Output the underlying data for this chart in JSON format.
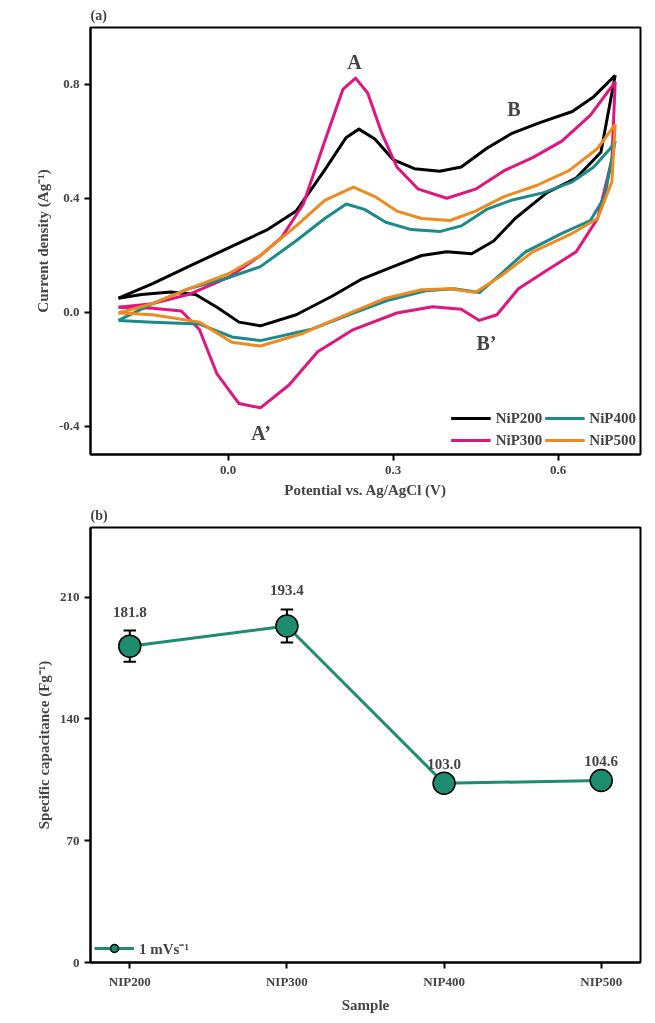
{
  "chart_data": [
    {
      "type": "line",
      "title": "(a)",
      "xlabel": "Potential vs. Ag/AgCl (V)",
      "ylabel": "Current density (Ag⁻¹)",
      "xlim": [
        -0.25,
        0.75
      ],
      "xticks": [
        {
          "value": 0,
          "label": "0.0"
        },
        0.3,
        0.6
      ],
      "ylim": [
        -0.5,
        1.0
      ],
      "yticks": [
        -0.4,
        {
          "value": 0,
          "label": "0.0"
        },
        0.4,
        0.8
      ],
      "grid": false,
      "legend": "bottom right",
      "marker": "none",
      "line_style": "solid",
      "series": [
        {
          "name": "NiP200",
          "color": "#000000",
          "x": [
            -0.199,
            -0.137,
            -0.072,
            0,
            0.072,
            0.124,
            0.176,
            0.215,
            0.238,
            0.267,
            0.3,
            0.339,
            0.385,
            0.424,
            0.47,
            0.515,
            0.567,
            0.626,
            0.665,
            0.704
          ],
          "values": [
            0.049,
            0.1,
            0.16,
            0.225,
            0.29,
            0.355,
            0.5,
            0.614,
            0.643,
            0.608,
            0.536,
            0.504,
            0.495,
            0.51,
            0.575,
            0.627,
            0.666,
            0.705,
            0.757,
            0.832
          ]
        },
        {
          "color": "#000000",
          "x": [
            0.704,
            0.678,
            0.633,
            0.58,
            0.522,
            0.483,
            0.443,
            0.398,
            0.352,
            0.3,
            0.241,
            0.189,
            0.124,
            0.059,
            0.02,
            -0.02,
            -0.059,
            -0.104,
            -0.157,
            -0.199
          ],
          "values": [
            0.832,
            0.562,
            0.471,
            0.42,
            0.329,
            0.25,
            0.205,
            0.212,
            0.199,
            0.16,
            0.114,
            0.056,
            -0.009,
            -0.048,
            -0.035,
            0.017,
            0.062,
            0.071,
            0.062,
            0.049
          ]
        },
        {
          "name": "NiP300",
          "color": "#e0157f",
          "x": [
            -0.199,
            -0.137,
            -0.072,
            0,
            0.059,
            0.098,
            0.137,
            0.176,
            0.209,
            0.232,
            0.254,
            0.28,
            0.307,
            0.346,
            0.398,
            0.45,
            0.502,
            0.554,
            0.607,
            0.659,
            0.704
          ],
          "values": [
            0.017,
            0.03,
            0.062,
            0.121,
            0.199,
            0.264,
            0.38,
            0.601,
            0.783,
            0.822,
            0.77,
            0.627,
            0.51,
            0.432,
            0.4,
            0.432,
            0.497,
            0.543,
            0.601,
            0.692,
            0.809
          ]
        },
        {
          "color": "#e0157f",
          "x": [
            0.704,
            0.698,
            0.672,
            0.633,
            0.58,
            0.528,
            0.489,
            0.457,
            0.424,
            0.372,
            0.307,
            0.228,
            0.163,
            0.111,
            0.059,
            0.02,
            -0.02,
            -0.052,
            -0.085,
            -0.137,
            -0.199
          ],
          "values": [
            0.809,
            0.536,
            0.329,
            0.212,
            0.147,
            0.082,
            -0.009,
            -0.029,
            0.01,
            0.019,
            -0.003,
            -0.061,
            -0.139,
            -0.256,
            -0.336,
            -0.321,
            -0.217,
            -0.061,
            0.004,
            0.014,
            0.017
          ]
        },
        {
          "name": "NiP400",
          "color": "#1a8a8a",
          "x": [
            -0.199,
            -0.137,
            -0.072,
            0,
            0.059,
            0.124,
            0.176,
            0.215,
            0.248,
            0.287,
            0.333,
            0.385,
            0.424,
            0.47,
            0.515,
            0.574,
            0.626,
            0.665,
            0.695,
            0.704
          ],
          "values": [
            -0.029,
            0.03,
            0.082,
            0.121,
            0.16,
            0.251,
            0.329,
            0.38,
            0.361,
            0.316,
            0.29,
            0.283,
            0.303,
            0.361,
            0.393,
            0.42,
            0.458,
            0.51,
            0.575,
            0.601
          ]
        },
        {
          "color": "#1a8a8a",
          "x": [
            0.704,
            0.685,
            0.659,
            0.607,
            0.541,
            0.496,
            0.457,
            0.411,
            0.359,
            0.293,
            0.228,
            0.15,
            0.059,
            0.007,
            -0.052,
            -0.137,
            -0.199
          ],
          "values": [
            0.601,
            0.406,
            0.322,
            0.277,
            0.212,
            0.134,
            0.069,
            0.082,
            0.075,
            0.043,
            -0.003,
            -0.061,
            -0.1,
            -0.087,
            -0.042,
            -0.035,
            -0.029
          ]
        },
        {
          "name": "NiP500",
          "color": "#ef8a1e",
          "x": [
            -0.199,
            -0.137,
            -0.072,
            0,
            0.059,
            0.124,
            0.176,
            0.228,
            0.267,
            0.307,
            0.352,
            0.404,
            0.45,
            0.502,
            0.561,
            0.62,
            0.672,
            0.704
          ],
          "values": [
            -0.003,
            0.03,
            0.082,
            0.134,
            0.199,
            0.303,
            0.393,
            0.439,
            0.406,
            0.355,
            0.329,
            0.322,
            0.355,
            0.406,
            0.445,
            0.497,
            0.575,
            0.66
          ]
        },
        {
          "color": "#ef8a1e",
          "x": [
            0.704,
            0.698,
            0.672,
            0.626,
            0.554,
            0.496,
            0.45,
            0.404,
            0.352,
            0.287,
            0.215,
            0.137,
            0.059,
            0.007,
            -0.052,
            -0.137,
            -0.199
          ],
          "values": [
            0.66,
            0.458,
            0.329,
            0.277,
            0.212,
            0.127,
            0.069,
            0.082,
            0.079,
            0.049,
            -0.009,
            -0.074,
            -0.119,
            -0.106,
            -0.035,
            -0.009,
            -0.003
          ]
        }
      ],
      "annotations": [
        "A",
        "B",
        "B’",
        "A’"
      ]
    },
    {
      "type": "line",
      "title": "(b)",
      "xlabel": "Sample",
      "ylabel": "Specific capacitance (Fg⁻¹)",
      "categories": [
        "NIP200",
        "NIP300",
        "NIP400",
        "NIP500"
      ],
      "ylim": [
        0,
        250
      ],
      "yticks": [
        0,
        70,
        140,
        210
      ],
      "grid": false,
      "legend": "bottom left",
      "marker": "circle",
      "line_style": "solid",
      "series": [
        {
          "name": "1 mVs⁻¹",
          "color": "#1e8c6e",
          "values": [
            181.8,
            193.4,
            103.0,
            104.6
          ],
          "errors": [
            9.0,
            9.5,
            null,
            null
          ],
          "value_labels": [
            "181.8",
            "193.4",
            "103.0",
            "104.6"
          ]
        }
      ]
    }
  ]
}
